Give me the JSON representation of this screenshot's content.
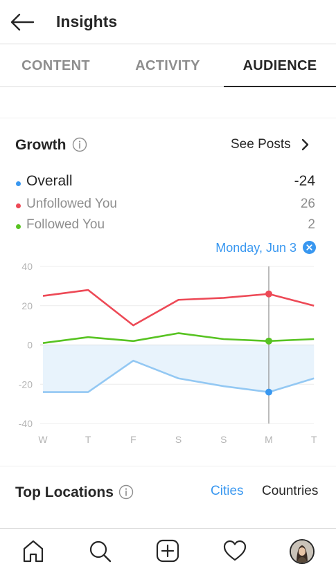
{
  "header": {
    "title": "Insights",
    "back_icon": "back-arrow-icon"
  },
  "tabs": [
    {
      "label": "CONTENT",
      "active": false
    },
    {
      "label": "ACTIVITY",
      "active": false
    },
    {
      "label": "AUDIENCE",
      "active": true
    }
  ],
  "growth": {
    "title": "Growth",
    "see_posts": "See Posts",
    "rows": [
      {
        "label": "Overall",
        "value": "-24",
        "color": "#3897f0"
      },
      {
        "label": "Unfollowed You",
        "value": "26",
        "color": "#ed4956"
      },
      {
        "label": "Followed You",
        "value": "2",
        "color": "#58c322"
      }
    ],
    "selected_date": "Monday, Jun 3"
  },
  "chart_data": {
    "type": "line",
    "categories": [
      "W",
      "T",
      "F",
      "S",
      "S",
      "M",
      "T"
    ],
    "yticks": [
      "40",
      "20",
      "0",
      "-20",
      "-40"
    ],
    "ylim": [
      -40,
      40
    ],
    "selected_index": 5,
    "series": [
      {
        "name": "Unfollowed You",
        "color": "#ed4956",
        "values": [
          25,
          28,
          10,
          23,
          24,
          26,
          20
        ]
      },
      {
        "name": "Followed You",
        "color": "#58c322",
        "values": [
          1,
          4,
          2,
          6,
          3,
          2,
          3
        ]
      },
      {
        "name": "Overall",
        "color": "#3897f0",
        "values": [
          -24,
          -24,
          -8,
          -17,
          -21,
          -24,
          -17
        ]
      }
    ]
  },
  "locations": {
    "title": "Top Locations",
    "options": [
      "Cities",
      "Countries"
    ],
    "active": "Cities"
  },
  "bottom_nav": [
    "home-icon",
    "search-icon",
    "add-post-icon",
    "heart-icon",
    "profile-avatar"
  ]
}
